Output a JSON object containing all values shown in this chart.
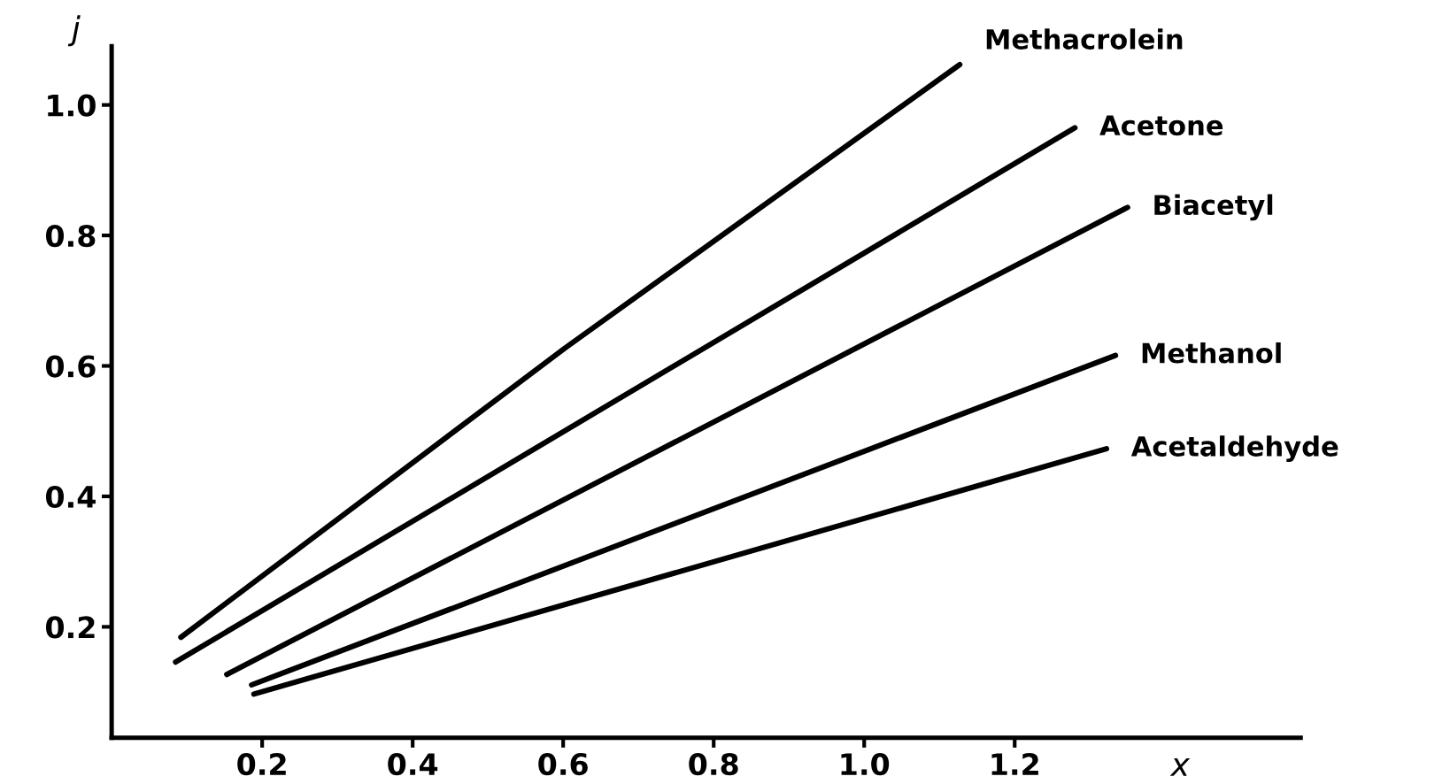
{
  "chart_data": {
    "type": "line",
    "xlabel": "x",
    "ylabel": "j",
    "xlim": [
      0,
      1.58
    ],
    "ylim": [
      0.03,
      1.09
    ],
    "xticks": [
      {
        "value": 0.2,
        "label": "0.2"
      },
      {
        "value": 0.4,
        "label": "0.4"
      },
      {
        "value": 0.6,
        "label": "0.6"
      },
      {
        "value": 0.8,
        "label": "0.8"
      },
      {
        "value": 1.0,
        "label": "1.0"
      },
      {
        "value": 1.2,
        "label": "1.2"
      }
    ],
    "yticks": [
      {
        "value": 0.2,
        "label": "0.2"
      },
      {
        "value": 0.4,
        "label": "0.4"
      },
      {
        "value": 0.6,
        "label": "0.6"
      },
      {
        "value": 0.8,
        "label": "0.8"
      },
      {
        "value": 1.0,
        "label": "1.0"
      }
    ],
    "grid": false,
    "legend": false,
    "marker": "none",
    "line_style": "solid",
    "series": [
      {
        "name": "Methacrolein",
        "color": "#000000",
        "x": [
          0.092,
          0.602,
          1.127
        ],
        "values": [
          0.184,
          0.627,
          1.062
        ]
      },
      {
        "name": "Acetone",
        "color": "#000000",
        "x": [
          0.085,
          1.28
        ],
        "values": [
          0.146,
          0.965
        ]
      },
      {
        "name": "Biacetyl",
        "color": "#000000",
        "x": [
          0.153,
          1.35
        ],
        "values": [
          0.127,
          0.843
        ]
      },
      {
        "name": "Methanol",
        "color": "#000000",
        "x": [
          0.186,
          1.334
        ],
        "values": [
          0.111,
          0.616
        ]
      },
      {
        "name": "Acetaldehyde",
        "color": "#000000",
        "x": [
          0.189,
          1.322
        ],
        "values": [
          0.097,
          0.473
        ]
      }
    ]
  }
}
